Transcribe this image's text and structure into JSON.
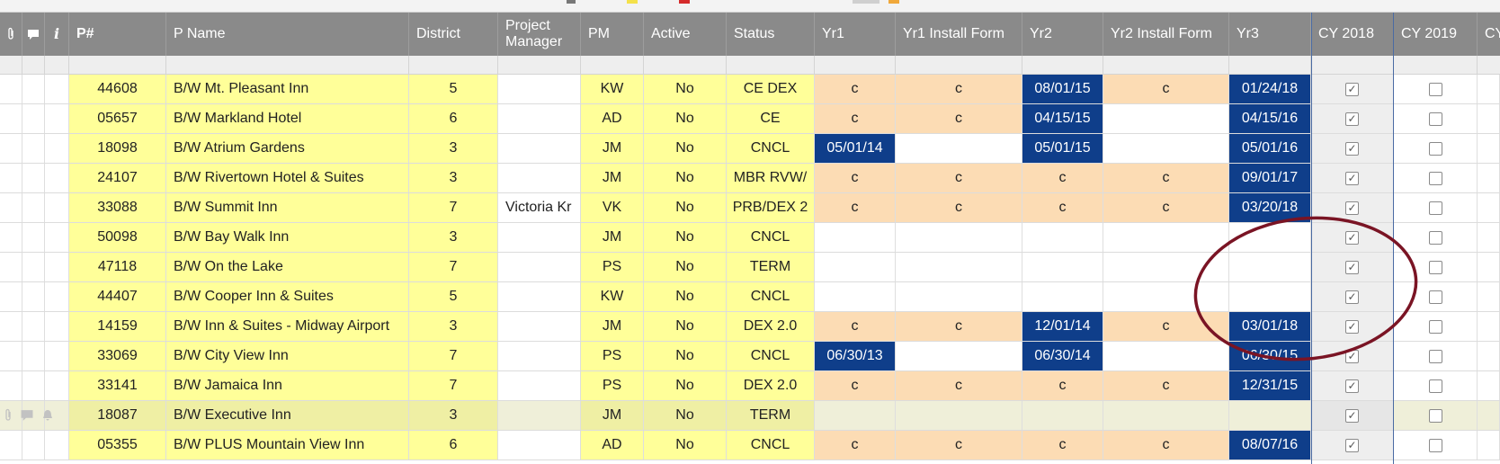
{
  "columns": {
    "attach_icon": "paperclip-icon",
    "comment_icon": "comment-icon",
    "info_icon": "info-icon",
    "info_glyph": "i",
    "p_num": "P#",
    "p_name": "P Name",
    "district": "District",
    "project_manager": "Project Manager",
    "pm": "PM",
    "active": "Active",
    "status": "Status",
    "yr1": "Yr1",
    "yr1_install_form": "Yr1 Install Form",
    "yr2": "Yr2",
    "yr2_install_form": "Yr2 Install Form",
    "yr3": "Yr3",
    "cy2018": "CY 2018",
    "cy2019": "CY 2019",
    "cy_next": "CY"
  },
  "colors": {
    "header_bg": "#8a8a8a",
    "yellow": "#ffff99",
    "orange": "#fcdcb4",
    "navy": "#0f3e8a",
    "circle": "#7a1424"
  },
  "rows": [
    {
      "p": "44608",
      "name": "B/W Mt. Pleasant Inn",
      "district": "5",
      "manager": "",
      "pm": "KW",
      "active": "No",
      "status": "CE DEX",
      "yr1": "c",
      "yr1f": "c",
      "yr2": "08/01/15",
      "yr2f": "c",
      "yr3": "01/24/18",
      "cy2018": true,
      "cy2019": false
    },
    {
      "p": "05657",
      "name": "B/W Markland Hotel",
      "district": "6",
      "manager": "",
      "pm": "AD",
      "active": "No",
      "status": "CE",
      "yr1": "c",
      "yr1f": "c",
      "yr2": "04/15/15",
      "yr2f": "",
      "yr3": "04/15/16",
      "cy2018": true,
      "cy2019": false
    },
    {
      "p": "18098",
      "name": "B/W Atrium Gardens",
      "district": "3",
      "manager": "",
      "pm": "JM",
      "active": "No",
      "status": "CNCL",
      "yr1": "05/01/14",
      "yr1f": "",
      "yr2": "05/01/15",
      "yr2f": "",
      "yr3": "05/01/16",
      "cy2018": true,
      "cy2019": false
    },
    {
      "p": "24107",
      "name": "B/W Rivertown Hotel & Suites",
      "district": "3",
      "manager": "",
      "pm": "JM",
      "active": "No",
      "status": "MBR RVW/",
      "yr1": "c",
      "yr1f": "c",
      "yr2": "c",
      "yr2f": "c",
      "yr3": "09/01/17",
      "cy2018": true,
      "cy2019": false
    },
    {
      "p": "33088",
      "name": "B/W Summit Inn",
      "district": "7",
      "manager": "Victoria Kr",
      "pm": "VK",
      "active": "No",
      "status": "PRB/DEX 2",
      "yr1": "c",
      "yr1f": "c",
      "yr2": "c",
      "yr2f": "c",
      "yr3": "03/20/18",
      "cy2018": true,
      "cy2019": false
    },
    {
      "p": "50098",
      "name": "B/W Bay Walk Inn",
      "district": "3",
      "manager": "",
      "pm": "JM",
      "active": "No",
      "status": "CNCL",
      "yr1": "",
      "yr1f": "",
      "yr2": "",
      "yr2f": "",
      "yr3": "",
      "cy2018": true,
      "cy2019": false
    },
    {
      "p": "47118",
      "name": "B/W On the Lake",
      "district": "7",
      "manager": "",
      "pm": "PS",
      "active": "No",
      "status": "TERM",
      "yr1": "",
      "yr1f": "",
      "yr2": "",
      "yr2f": "",
      "yr3": "",
      "cy2018": true,
      "cy2019": false
    },
    {
      "p": "44407",
      "name": "B/W Cooper Inn & Suites",
      "district": "5",
      "manager": "",
      "pm": "KW",
      "active": "No",
      "status": "CNCL",
      "yr1": "",
      "yr1f": "",
      "yr2": "",
      "yr2f": "",
      "yr3": "",
      "cy2018": true,
      "cy2019": false
    },
    {
      "p": "14159",
      "name": "B/W Inn & Suites - Midway Airport",
      "district": "3",
      "manager": "",
      "pm": "JM",
      "active": "No",
      "status": "DEX 2.0",
      "yr1": "c",
      "yr1f": "c",
      "yr2": "12/01/14",
      "yr2f": "c",
      "yr3": "03/01/18",
      "cy2018": true,
      "cy2019": false
    },
    {
      "p": "33069",
      "name": "B/W City View Inn",
      "district": "7",
      "manager": "",
      "pm": "PS",
      "active": "No",
      "status": "CNCL",
      "yr1": "06/30/13",
      "yr1f": "",
      "yr2": "06/30/14",
      "yr2f": "",
      "yr3": "06/30/15",
      "cy2018": true,
      "cy2019": false
    },
    {
      "p": "33141",
      "name": "B/W Jamaica Inn",
      "district": "7",
      "manager": "",
      "pm": "PS",
      "active": "No",
      "status": "DEX 2.0",
      "yr1": "c",
      "yr1f": "c",
      "yr2": "c",
      "yr2f": "c",
      "yr3": "12/31/15",
      "cy2018": true,
      "cy2019": false
    },
    {
      "p": "18087",
      "name": "B/W Executive Inn",
      "district": "3",
      "manager": "",
      "pm": "JM",
      "active": "No",
      "status": "TERM",
      "yr1": "",
      "yr1f": "",
      "yr2": "",
      "yr2f": "",
      "yr3": "",
      "cy2018": true,
      "cy2019": false
    },
    {
      "p": "05355",
      "name": "B/W PLUS Mountain View Inn",
      "district": "6",
      "manager": "",
      "pm": "AD",
      "active": "No",
      "status": "CNCL",
      "yr1": "c",
      "yr1f": "c",
      "yr2": "c",
      "yr2f": "c",
      "yr3": "08/07/16",
      "cy2018": true,
      "cy2019": false
    }
  ],
  "row_icons": {
    "attach": "paperclip-icon",
    "comment": "comment-icon",
    "bell": "bell-icon"
  },
  "check_glyph": "✓"
}
